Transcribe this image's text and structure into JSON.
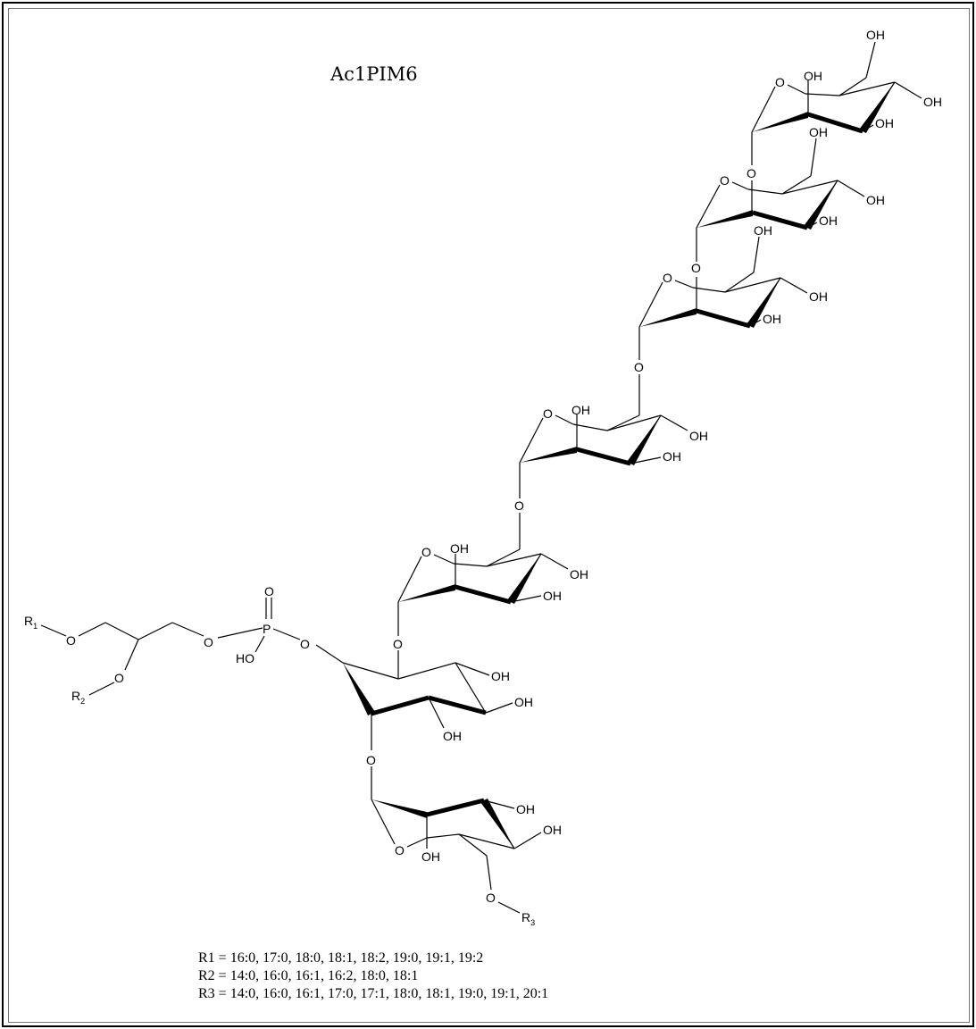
{
  "title": "Ac1PIM6",
  "atoms": {
    "oxygen": "O",
    "hydroxyl": "OH",
    "hydroxyl_left": "HO",
    "phosphorus": "P",
    "r1": "R",
    "r1_sub": "1",
    "r2": "R",
    "r2_sub": "2",
    "r3": "R",
    "r3_sub": "3"
  },
  "legend": {
    "r1": "R1 = 16:0, 17:0, 18:0, 18:1, 18:2, 19:0, 19:1, 19:2",
    "r2": "R2 = 14:0, 16:0, 16:1, 16:2, 18:0, 18:1",
    "r3": "R3 = 14:0, 16:0, 16:1, 17:0, 17:1, 18:0, 18:1, 19:0, 19:1, 20:1"
  }
}
